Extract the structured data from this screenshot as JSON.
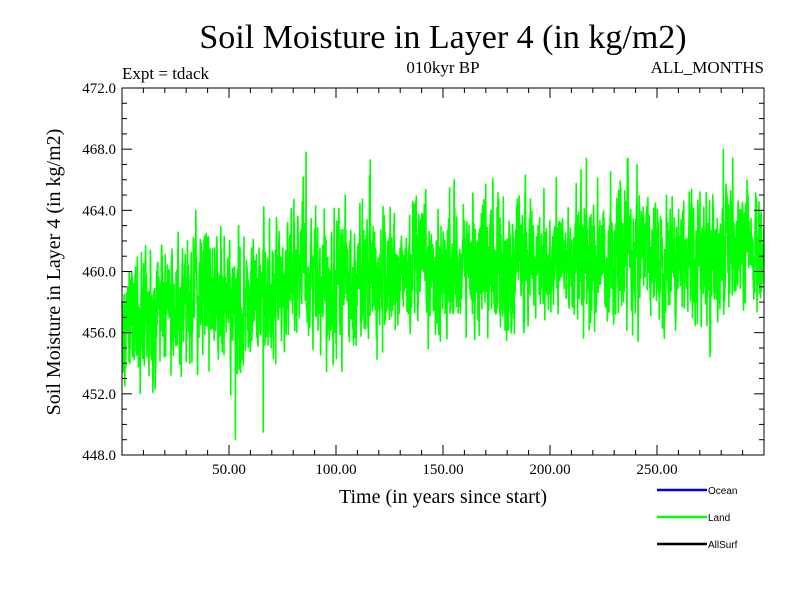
{
  "chart_data": {
    "type": "line",
    "title": "Soil Moisture in Layer 4 (in kg/m2)",
    "subtitle": "010kyr BP",
    "left_note": "Expt = tdack",
    "right_note": "ALL_MONTHS",
    "xlabel": "Time (in years since start)",
    "ylabel": "Soil Moisture in Layer 4 (in kg/m2)",
    "xlim": [
      0,
      300
    ],
    "ylim": [
      448,
      472
    ],
    "xticks": [
      50,
      100,
      150,
      200,
      250
    ],
    "xtick_labels": [
      "50.00",
      "100.00",
      "150.00",
      "200.00",
      "250.00"
    ],
    "yticks": [
      448,
      452,
      456,
      460,
      464,
      468,
      472
    ],
    "ytick_labels": [
      "448.0",
      "452.0",
      "456.0",
      "460.0",
      "464.0",
      "468.0",
      "472.0"
    ],
    "series": [
      {
        "name": "Land",
        "color": "#00ff00",
        "trend": [
          [
            0,
            456.8
          ],
          [
            15,
            457.3
          ],
          [
            40,
            459.0
          ],
          [
            55,
            457.2
          ],
          [
            80,
            459.8
          ],
          [
            120,
            459.5
          ],
          [
            160,
            460.3
          ],
          [
            200,
            460.8
          ],
          [
            250,
            461.0
          ],
          [
            300,
            461.2
          ]
        ],
        "amplitude": 2.6,
        "peaks": [
          [
            53,
            449.0
          ],
          [
            66,
            449.5
          ],
          [
            86,
            467.8
          ],
          [
            116,
            467.3
          ],
          [
            281,
            468.0
          ]
        ]
      }
    ],
    "legend": {
      "placement": "bottom-right",
      "items": [
        {
          "name": "Ocean",
          "color": "#0000dd"
        },
        {
          "name": "Land",
          "color": "#00ff00"
        },
        {
          "name": "AllSurf",
          "color": "#000000"
        }
      ]
    }
  }
}
